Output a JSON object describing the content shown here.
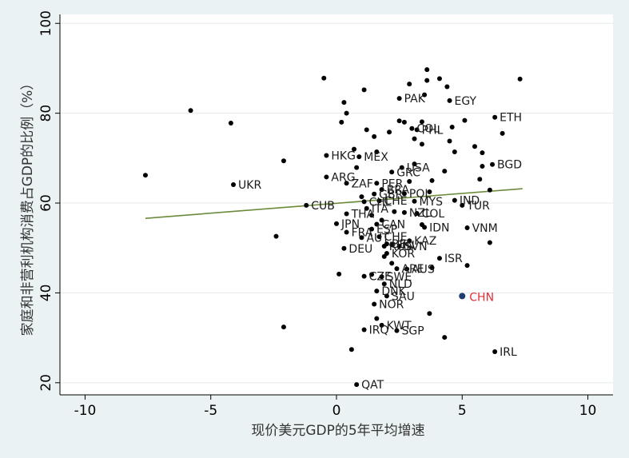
{
  "chart_data": {
    "type": "scatter",
    "title": "",
    "xlabel": "现价美元GDP的5年平均增速",
    "ylabel": "家庭和非营利机构消费占GDP的比例（%）",
    "xlim": [
      -11,
      11
    ],
    "ylim": [
      17.3,
      102
    ],
    "x_ticks": [
      -10,
      -5,
      0,
      5,
      10
    ],
    "y_ticks": [
      20,
      40,
      60,
      80,
      100
    ],
    "x_tick_labels": [
      "-10",
      "-5",
      "0",
      "5",
      "10"
    ],
    "y_tick_labels": [
      "20",
      "40",
      "60",
      "80",
      "100"
    ],
    "grid": "horizontal",
    "fit_line": {
      "x": [
        -7.6,
        7.4
      ],
      "y": [
        56.6,
        63.2
      ],
      "color": "#6b8a3a"
    },
    "colors": {
      "points": "#000000",
      "highlight": "#1f3d70",
      "highlight_label": "#e0303a",
      "background": "#eaf2f3",
      "plot_bg": "#ffffff",
      "grid": "#e4eaec"
    },
    "highlight": {
      "label": "CHN",
      "x": 5.0,
      "y": 39.3
    },
    "labeled_points": [
      {
        "label": "PAK",
        "x": 2.5,
        "y": 83.3
      },
      {
        "label": "EGY",
        "x": 4.5,
        "y": 82.8
      },
      {
        "label": "ETH",
        "x": 6.3,
        "y": 79.1
      },
      {
        "label": "COL",
        "x": 3.0,
        "y": 76.6
      },
      {
        "label": "PHL",
        "x": 3.2,
        "y": 76.3
      },
      {
        "label": "HKG",
        "x": -0.4,
        "y": 70.6
      },
      {
        "label": "MEX",
        "x": 0.9,
        "y": 70.3
      },
      {
        "label": "BGD",
        "x": 6.2,
        "y": 68.6
      },
      {
        "label": "USA",
        "x": 2.6,
        "y": 67.9
      },
      {
        "label": "GRC",
        "x": 2.2,
        "y": 66.9
      },
      {
        "label": "ARG",
        "x": -0.4,
        "y": 65.8
      },
      {
        "label": "ZAF",
        "x": 0.4,
        "y": 64.4
      },
      {
        "label": "PER",
        "x": 1.6,
        "y": 64.4
      },
      {
        "label": "UKR",
        "x": -4.1,
        "y": 64.1
      },
      {
        "label": "BRA",
        "x": 1.8,
        "y": 63.0
      },
      {
        "label": "POL",
        "x": 2.7,
        "y": 62.1
      },
      {
        "label": "GBR",
        "x": 1.5,
        "y": 62.0
      },
      {
        "label": "CHE",
        "x": 1.7,
        "y": 60.5
      },
      {
        "label": "CHL",
        "x": 1.1,
        "y": 60.3
      },
      {
        "label": "MYS",
        "x": 3.1,
        "y": 60.4
      },
      {
        "label": "IND",
        "x": 4.7,
        "y": 60.6
      },
      {
        "label": "CUB",
        "x": -1.2,
        "y": 59.5
      },
      {
        "label": "TUR",
        "x": 5.0,
        "y": 59.5
      },
      {
        "label": "ITA",
        "x": 1.2,
        "y": 58.8
      },
      {
        "label": "NZL",
        "x": 2.7,
        "y": 57.9
      },
      {
        "label": "COL",
        "x": 3.2,
        "y": 57.7
      },
      {
        "label": "THA",
        "x": 0.4,
        "y": 57.6
      },
      {
        "label": "JPN",
        "x": 0.0,
        "y": 55.4
      },
      {
        "label": "CAN",
        "x": 1.6,
        "y": 55.3
      },
      {
        "label": "IDN",
        "x": 3.5,
        "y": 54.6
      },
      {
        "label": "VNM",
        "x": 5.2,
        "y": 54.5
      },
      {
        "label": "FRA",
        "x": 0.4,
        "y": 53.5
      },
      {
        "label": "ESP",
        "x": 1.4,
        "y": 54.2
      },
      {
        "label": "AUT",
        "x": 1.0,
        "y": 52.3
      },
      {
        "label": "CHE",
        "x": 1.7,
        "y": 52.5
      },
      {
        "label": "KAZ",
        "x": 2.9,
        "y": 51.6
      },
      {
        "label": "BEL",
        "x": 2.0,
        "y": 50.9
      },
      {
        "label": "DEU",
        "x": 0.3,
        "y": 49.9
      },
      {
        "label": "RUS",
        "x": 1.9,
        "y": 50.4
      },
      {
        "label": "FIN",
        "x": 2.2,
        "y": 50.7
      },
      {
        "label": "SVN",
        "x": 2.5,
        "y": 50.4
      },
      {
        "label": "KOR",
        "x": 2.0,
        "y": 48.8
      },
      {
        "label": "ISR",
        "x": 4.1,
        "y": 47.7
      },
      {
        "label": "ARE",
        "x": 2.4,
        "y": 45.4
      },
      {
        "label": "AUS",
        "x": 2.8,
        "y": 45.3
      },
      {
        "label": "CZE",
        "x": 1.1,
        "y": 43.7
      },
      {
        "label": "SWE",
        "x": 1.8,
        "y": 43.6
      },
      {
        "label": "NLD",
        "x": 1.9,
        "y": 42.0
      },
      {
        "label": "DNK",
        "x": 1.6,
        "y": 40.4
      },
      {
        "label": "SAU",
        "x": 2.0,
        "y": 39.3
      },
      {
        "label": "NOR",
        "x": 1.5,
        "y": 37.5
      },
      {
        "label": "KWT",
        "x": 1.8,
        "y": 32.8
      },
      {
        "label": "IRQ",
        "x": 1.1,
        "y": 31.8
      },
      {
        "label": "SGP",
        "x": 2.4,
        "y": 31.6
      },
      {
        "label": "IRL",
        "x": 6.3,
        "y": 26.9
      },
      {
        "label": "QAT",
        "x": 0.8,
        "y": 19.6
      }
    ],
    "unlabeled_points": [
      {
        "x": -7.6,
        "y": 66.2
      },
      {
        "x": -5.8,
        "y": 80.6
      },
      {
        "x": -4.2,
        "y": 77.8
      },
      {
        "x": -2.4,
        "y": 52.6
      },
      {
        "x": -2.1,
        "y": 69.4
      },
      {
        "x": -2.1,
        "y": 32.4
      },
      {
        "x": -0.5,
        "y": 87.8
      },
      {
        "x": 0.1,
        "y": 44.2
      },
      {
        "x": 0.2,
        "y": 78.0
      },
      {
        "x": 0.4,
        "y": 80.0
      },
      {
        "x": 0.3,
        "y": 82.4
      },
      {
        "x": 0.6,
        "y": 27.4
      },
      {
        "x": 0.7,
        "y": 72.0
      },
      {
        "x": 1.1,
        "y": 85.2
      },
      {
        "x": 1.2,
        "y": 76.3
      },
      {
        "x": 1.5,
        "y": 74.8
      },
      {
        "x": 1.6,
        "y": 71.4
      },
      {
        "x": 0.8,
        "y": 67.9
      },
      {
        "x": 1.0,
        "y": 61.4
      },
      {
        "x": 1.4,
        "y": 57.3
      },
      {
        "x": 1.9,
        "y": 48.1
      },
      {
        "x": 1.4,
        "y": 44.1
      },
      {
        "x": 1.6,
        "y": 34.3
      },
      {
        "x": 2.1,
        "y": 75.8
      },
      {
        "x": 2.5,
        "y": 78.3
      },
      {
        "x": 2.7,
        "y": 78.0
      },
      {
        "x": 2.9,
        "y": 86.5
      },
      {
        "x": 3.1,
        "y": 74.3
      },
      {
        "x": 3.4,
        "y": 78.1
      },
      {
        "x": 3.5,
        "y": 84.1
      },
      {
        "x": 3.6,
        "y": 87.3
      },
      {
        "x": 3.6,
        "y": 89.7
      },
      {
        "x": 3.4,
        "y": 73.1
      },
      {
        "x": 3.8,
        "y": 65.0
      },
      {
        "x": 3.7,
        "y": 62.5
      },
      {
        "x": 3.4,
        "y": 55.2
      },
      {
        "x": 3.8,
        "y": 45.6
      },
      {
        "x": 3.7,
        "y": 35.4
      },
      {
        "x": 4.1,
        "y": 87.7
      },
      {
        "x": 4.4,
        "y": 85.9
      },
      {
        "x": 4.6,
        "y": 76.9
      },
      {
        "x": 4.5,
        "y": 73.8
      },
      {
        "x": 4.7,
        "y": 71.4
      },
      {
        "x": 4.3,
        "y": 67.1
      },
      {
        "x": 5.1,
        "y": 78.4
      },
      {
        "x": 5.5,
        "y": 72.6
      },
      {
        "x": 5.7,
        "y": 65.3
      },
      {
        "x": 5.8,
        "y": 71.2
      },
      {
        "x": 5.8,
        "y": 68.2
      },
      {
        "x": 6.1,
        "y": 62.9
      },
      {
        "x": 6.1,
        "y": 51.2
      },
      {
        "x": 6.6,
        "y": 75.5
      },
      {
        "x": 7.3,
        "y": 87.6
      },
      {
        "x": 4.3,
        "y": 30.1
      },
      {
        "x": 5.2,
        "y": 46.1
      },
      {
        "x": 2.9,
        "y": 64.8
      },
      {
        "x": 2.3,
        "y": 58.1
      },
      {
        "x": 1.8,
        "y": 56.2
      },
      {
        "x": 2.2,
        "y": 46.6
      },
      {
        "x": 3.1,
        "y": 68.7
      }
    ]
  }
}
